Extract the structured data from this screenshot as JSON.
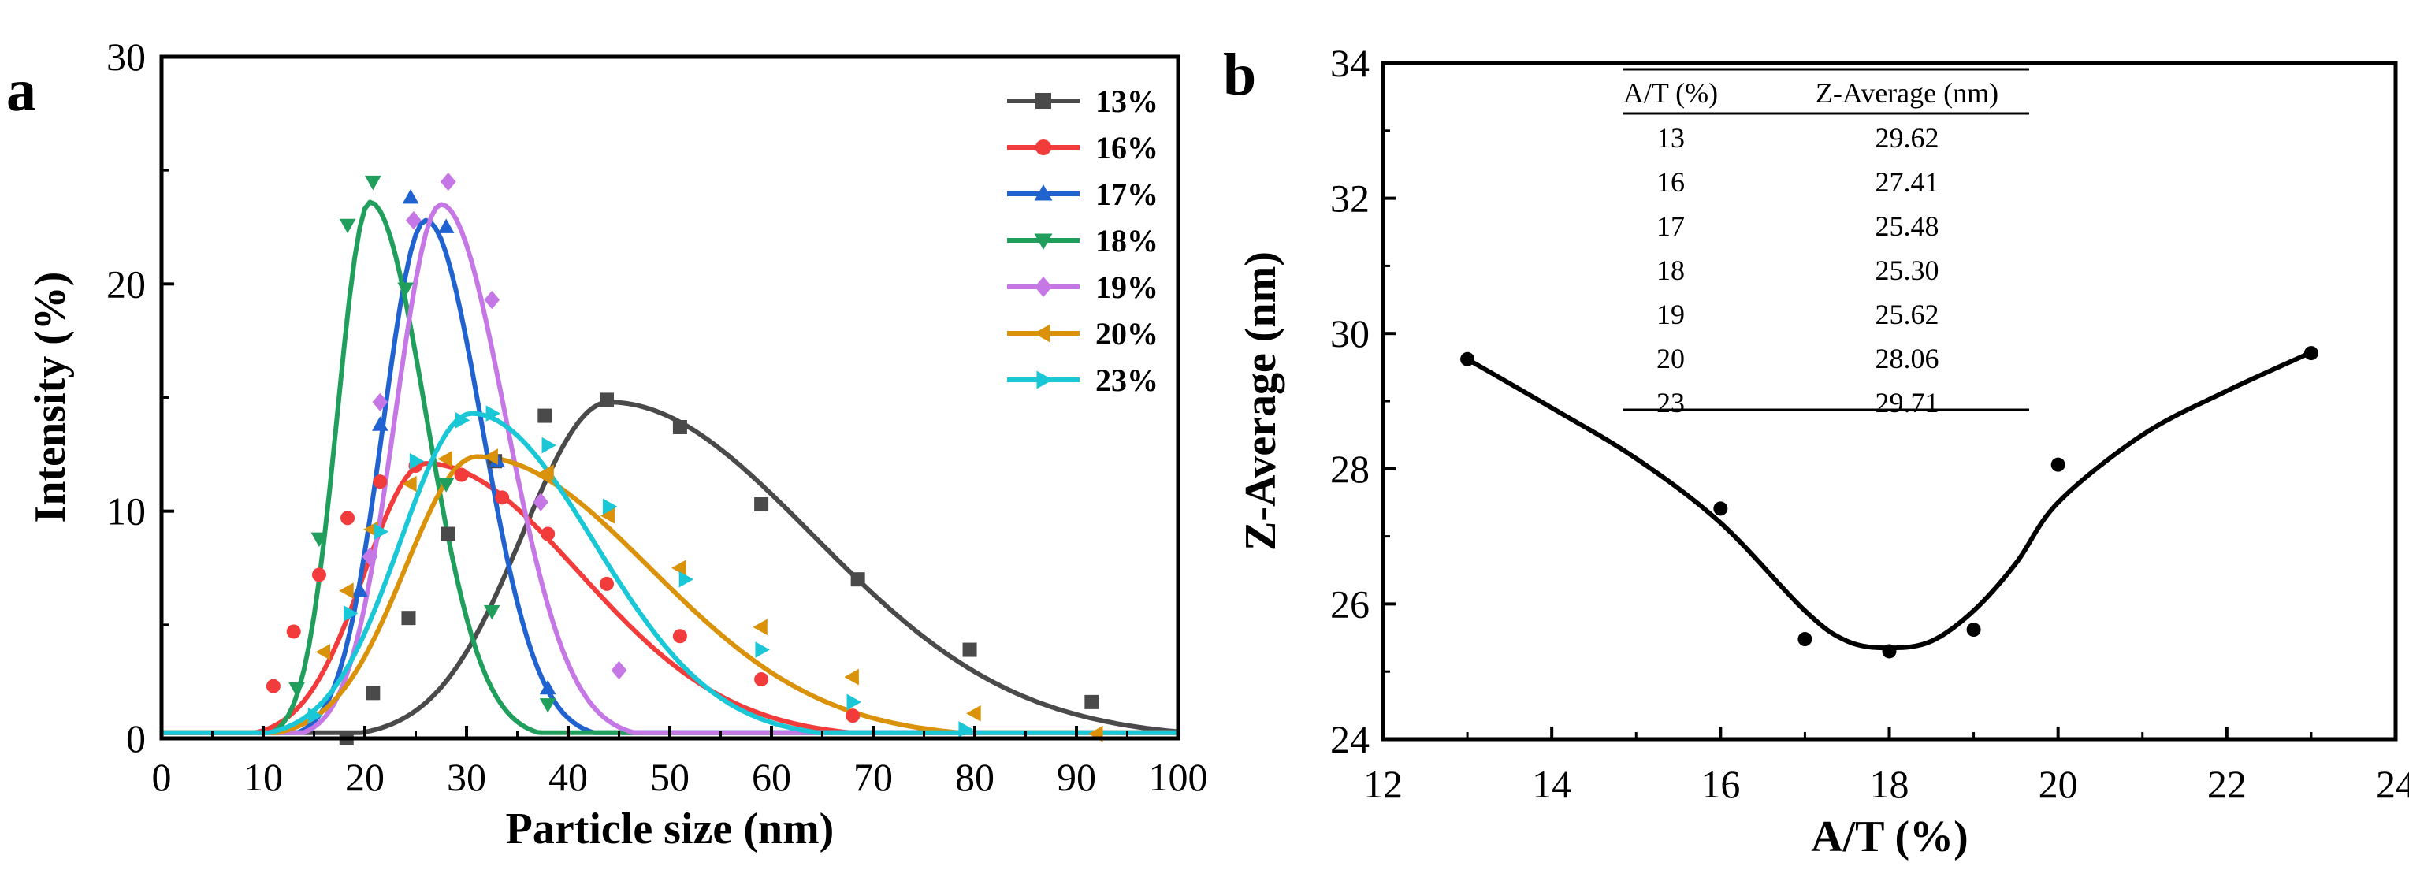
{
  "colors": {
    "13%": "#4a4a4a",
    "16%": "#f23c3c",
    "17%": "#1f62d0",
    "18%": "#1f9e5c",
    "19%": "#c677e6",
    "20%": "#d9920a",
    "23%": "#19c7d6",
    "fit_b": "#000000"
  },
  "chart_data": [
    {
      "panel": "a",
      "type": "line",
      "xlabel": "Particle size (nm)",
      "ylabel": "Intensity (%)",
      "xlim": [
        0,
        100
      ],
      "ylim": [
        0,
        30
      ],
      "xticks": [
        "0",
        "10",
        "20",
        "30",
        "40",
        "50",
        "60",
        "70",
        "80",
        "90",
        "100"
      ],
      "yticks": [
        "0",
        "10",
        "20",
        "30"
      ],
      "legend_position": "top-right",
      "series": [
        {
          "name": "13%",
          "marker": "square",
          "peak_x": 44,
          "peak_y": 14.8,
          "sigma_left": 8.5,
          "sigma_right": 20,
          "points": [
            [
              18.2,
              0.0
            ],
            [
              20.8,
              2.0
            ],
            [
              24.3,
              5.3
            ],
            [
              28.2,
              9.0
            ],
            [
              32.8,
              12.2
            ],
            [
              37.7,
              14.2
            ],
            [
              43.8,
              14.9
            ],
            [
              51.0,
              13.7
            ],
            [
              59.0,
              10.3
            ],
            [
              68.5,
              7.0
            ],
            [
              79.5,
              3.9
            ],
            [
              91.5,
              1.6
            ]
          ]
        },
        {
          "name": "16%",
          "marker": "circle",
          "peak_x": 26,
          "peak_y": 12.1,
          "sigma_left": 6,
          "sigma_right": 15,
          "points": [
            [
              11.0,
              2.3
            ],
            [
              13.0,
              4.7
            ],
            [
              15.5,
              7.2
            ],
            [
              18.3,
              9.7
            ],
            [
              21.5,
              11.3
            ],
            [
              25.0,
              12.0
            ],
            [
              29.5,
              11.6
            ],
            [
              33.5,
              10.6
            ],
            [
              38.0,
              9.0
            ],
            [
              43.8,
              6.8
            ],
            [
              51.0,
              4.5
            ],
            [
              59.0,
              2.6
            ],
            [
              68.0,
              1.0
            ]
          ]
        },
        {
          "name": "17%",
          "marker": "triangle-up",
          "peak_x": 26,
          "peak_y": 22.8,
          "sigma_left": 4.2,
          "sigma_right": 5.5,
          "points": [
            [
              19.5,
              6.5
            ],
            [
              21.5,
              13.8
            ],
            [
              24.5,
              23.8
            ],
            [
              28.0,
              22.5
            ],
            [
              33.0,
              12.2
            ],
            [
              38.0,
              2.2
            ]
          ]
        },
        {
          "name": "18%",
          "marker": "triangle-down",
          "peak_x": 20.5,
          "peak_y": 23.6,
          "sigma_left": 3.2,
          "sigma_right": 5.5,
          "points": [
            [
              13.3,
              2.2
            ],
            [
              15.5,
              8.8
            ],
            [
              18.3,
              22.6
            ],
            [
              20.8,
              24.5
            ],
            [
              24.0,
              19.8
            ],
            [
              28.0,
              11.2
            ],
            [
              32.5,
              5.6
            ],
            [
              38.0,
              1.5
            ]
          ]
        },
        {
          "name": "19%",
          "marker": "diamond",
          "peak_x": 27.5,
          "peak_y": 23.5,
          "sigma_left": 4.5,
          "sigma_right": 6.3,
          "points": [
            [
              20.5,
              8.0
            ],
            [
              21.5,
              14.8
            ],
            [
              24.8,
              22.8
            ],
            [
              28.2,
              24.5
            ],
            [
              32.5,
              19.3
            ],
            [
              37.3,
              10.4
            ],
            [
              45.0,
              3.0
            ]
          ]
        },
        {
          "name": "20%",
          "marker": "triangle-left",
          "peak_x": 31,
          "peak_y": 12.4,
          "sigma_left": 7,
          "sigma_right": 17,
          "points": [
            [
              16.0,
              3.8
            ],
            [
              18.3,
              6.5
            ],
            [
              20.7,
              9.2
            ],
            [
              24.5,
              11.2
            ],
            [
              28.0,
              12.3
            ],
            [
              32.5,
              12.4
            ],
            [
              38.0,
              11.7
            ],
            [
              44.0,
              9.8
            ],
            [
              51.0,
              7.5
            ],
            [
              59.0,
              4.9
            ],
            [
              68.0,
              2.7
            ],
            [
              80.0,
              1.1
            ],
            [
              92.0,
              0.2
            ]
          ]
        },
        {
          "name": "23%",
          "marker": "triangle-right",
          "peak_x": 30.5,
          "peak_y": 14.3,
          "sigma_left": 7,
          "sigma_right": 12,
          "points": [
            [
              15.0,
              1.0
            ],
            [
              18.5,
              5.5
            ],
            [
              21.5,
              9.1
            ],
            [
              25.0,
              12.2
            ],
            [
              29.5,
              14.0
            ],
            [
              32.5,
              14.3
            ],
            [
              38.0,
              12.9
            ],
            [
              44.0,
              10.2
            ],
            [
              51.5,
              7.0
            ],
            [
              59.0,
              3.9
            ],
            [
              68.0,
              1.6
            ],
            [
              79.0,
              0.4
            ]
          ]
        }
      ]
    },
    {
      "panel": "b",
      "type": "scatter",
      "xlabel": "A/T (%)",
      "ylabel": "Z-Average (nm)",
      "xlim": [
        12,
        24
      ],
      "ylim": [
        24,
        34
      ],
      "xticks": [
        "12",
        "14",
        "16",
        "18",
        "20",
        "22",
        "24"
      ],
      "yticks": [
        "24",
        "26",
        "28",
        "30",
        "32",
        "34"
      ],
      "x": [
        13,
        16,
        17,
        18,
        19,
        20,
        23
      ],
      "y": [
        29.62,
        27.41,
        25.48,
        25.3,
        25.62,
        28.06,
        29.71
      ],
      "fit_curve": [
        [
          13,
          29.62
        ],
        [
          14,
          28.9
        ],
        [
          15,
          28.15
        ],
        [
          16,
          27.2
        ],
        [
          17,
          25.9
        ],
        [
          17.5,
          25.45
        ],
        [
          18,
          25.35
        ],
        [
          18.5,
          25.45
        ],
        [
          19,
          25.9
        ],
        [
          19.5,
          26.6
        ],
        [
          20,
          27.5
        ],
        [
          21,
          28.5
        ],
        [
          22,
          29.15
        ],
        [
          23,
          29.72
        ]
      ],
      "table": {
        "headers": [
          "A/T (%)",
          "Z-Average (nm)"
        ],
        "rows": [
          [
            "13",
            "29.62"
          ],
          [
            "16",
            "27.41"
          ],
          [
            "17",
            "25.48"
          ],
          [
            "18",
            "25.30"
          ],
          [
            "19",
            "25.62"
          ],
          [
            "20",
            "28.06"
          ],
          [
            "23",
            "29.71"
          ]
        ]
      }
    }
  ]
}
